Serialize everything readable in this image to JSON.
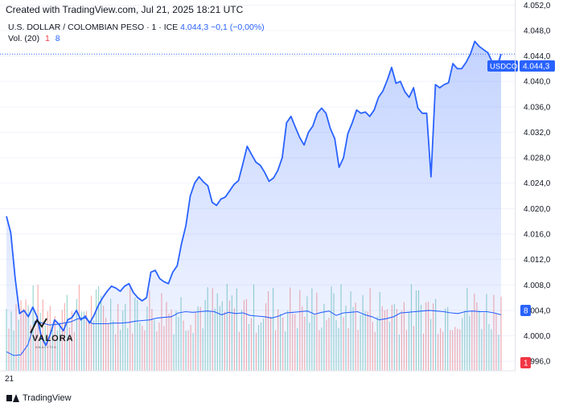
{
  "caption": "Created with TradingView.com, Jul 21, 2025 18:21 UTC",
  "legend": {
    "symbol": "U.S. DOLLAR / COLOMBIAN PESO · 1 · ICE",
    "price": "4.044,3",
    "change": "−0,1 (−0,00%)",
    "volume_label": "Vol. (20)",
    "vol_value_1": "1",
    "vol_value_2": "8"
  },
  "price_tag": {
    "symbol": "USDCOP",
    "value": "4.044,3"
  },
  "vol_tag_blue": "8",
  "vol_tag_red": "1",
  "x_tick_label": "21",
  "footer": {
    "brand": "TradingView"
  },
  "watermark": {
    "text": "VALORA",
    "sub": "ANALYTIK"
  },
  "colors": {
    "line": "#2962ff",
    "area": "#2962ff",
    "vol_up": "#26a69a",
    "vol_down": "#ef5350",
    "vol_ma": "#2962ff"
  },
  "chart_data": {
    "type": "area",
    "title": "U.S. DOLLAR / COLOMBIAN PESO",
    "ylim": [
      3994.5,
      4052.8
    ],
    "yticks": [
      "4.052,0",
      "4.048,0",
      "4.044,0",
      "4.040,0",
      "4.036,0",
      "4.032,0",
      "4.028,0",
      "4.024,0",
      "4.020,0",
      "4.016,0",
      "4.012,0",
      "4.008,0",
      "4.004,0",
      "4.000,0",
      "3.996,0"
    ],
    "ytick_values": [
      4052,
      4048,
      4044,
      4040,
      4036,
      4032,
      4028,
      4024,
      4020,
      4016,
      4012,
      4008,
      4004,
      4000,
      3996
    ],
    "grid": true,
    "last_price": 4044.3,
    "series": [
      {
        "name": "USDCOP",
        "values": [
          4018.8,
          4016.2,
          4009.0,
          4003.5,
          4004.0,
          4003.0,
          4004.5,
          4003.0,
          3999.8,
          3998.5,
          4000.2,
          4002.5,
          4001.8,
          4000.8,
          4002.5,
          4002.9,
          4004.0,
          4002.5,
          4003.1,
          4002.0,
          4003.2,
          4004.8,
          4006.0,
          4007.0,
          4007.8,
          4007.5,
          4007.0,
          4007.8,
          4008.2,
          4006.8,
          4006.0,
          4005.5,
          4006.0,
          4010.0,
          4010.3,
          4009.0,
          4008.5,
          4008.2,
          4010.0,
          4011.0,
          4014.5,
          4017.3,
          4022.0,
          4024.0,
          4025.0,
          4024.2,
          4023.6,
          4021.0,
          4020.5,
          4021.5,
          4021.8,
          4022.8,
          4023.8,
          4024.4,
          4027.0,
          4029.8,
          4028.5,
          4027.3,
          4026.8,
          4025.7,
          4024.3,
          4024.8,
          4026.0,
          4028.0,
          4033.5,
          4034.5,
          4032.8,
          4031.2,
          4030.0,
          4032.0,
          4033.0,
          4035.0,
          4035.8,
          4035.0,
          4032.6,
          4031.0,
          4026.5,
          4028.0,
          4031.8,
          4033.5,
          4035.5,
          4035.0,
          4035.2,
          4034.5,
          4035.5,
          4037.5,
          4038.5,
          4040.2,
          4042.2,
          4039.7,
          4040.0,
          4038.4,
          4037.5,
          4039.0,
          4035.8,
          4035.0,
          4035.0,
          4025.0,
          4039.5,
          4039.0,
          4039.5,
          4039.8,
          4042.8,
          4042.0,
          4042.0,
          4043.0,
          4044.3,
          4046.3,
          4045.5,
          4045.0,
          4044.5,
          4043.0,
          4042.2,
          4044.3
        ]
      }
    ],
    "volume": {
      "label": "Vol. (20)",
      "bar_count": 205,
      "ma": [
        3997.5,
        3996.9,
        3997.0,
        3998.6,
        4002.3,
        4002.0,
        4001.7,
        4001.8,
        4002.0,
        4002.2,
        4002.7,
        4002.8,
        4001.9,
        4001.9,
        4001.9,
        4002.0,
        4002.0,
        4002.1,
        4002.3,
        4002.4,
        4002.5,
        4002.8,
        4002.9,
        4003.0,
        4003.6,
        4003.8,
        4003.7,
        4003.8,
        4003.9,
        4003.8,
        4003.3,
        4003.7,
        4003.5,
        4003.6,
        4003.2,
        4003.1,
        4003.0,
        4002.8,
        4003.1,
        4003.6,
        4003.7,
        4003.8,
        4003.9,
        4003.4,
        4003.7,
        4003.9,
        4003.2,
        4003.6,
        4003.7,
        4003.8,
        4003.3,
        4003.0,
        4002.5,
        4002.7,
        4003.0,
        4003.6,
        4003.7,
        4003.8,
        4003.9,
        4004.0,
        4003.9,
        4003.8,
        4003.6,
        4003.5,
        4003.8,
        4003.9,
        4003.8,
        4003.8,
        4003.6,
        4003.3
      ]
    }
  }
}
